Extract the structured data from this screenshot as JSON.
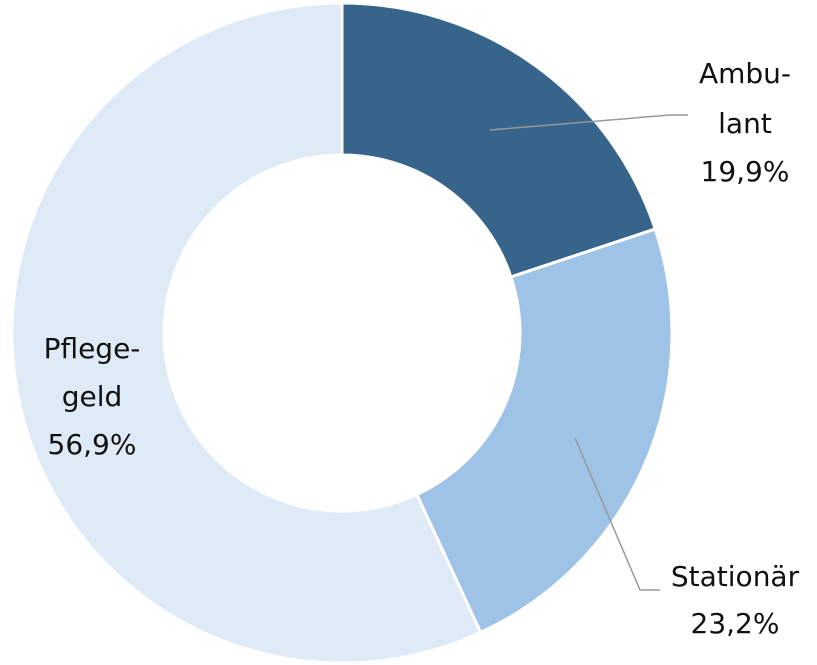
{
  "chart_data": {
    "type": "donut",
    "categories": [
      "Ambu-lant",
      "Stationär",
      "Pflege-geld"
    ],
    "values": [
      19.9,
      23.2,
      56.9
    ],
    "value_labels": [
      "19,9%",
      "23,2%",
      "56,9%"
    ],
    "colors": [
      "#36648b",
      "#9fc3e6",
      "#deeaf6"
    ]
  }
}
